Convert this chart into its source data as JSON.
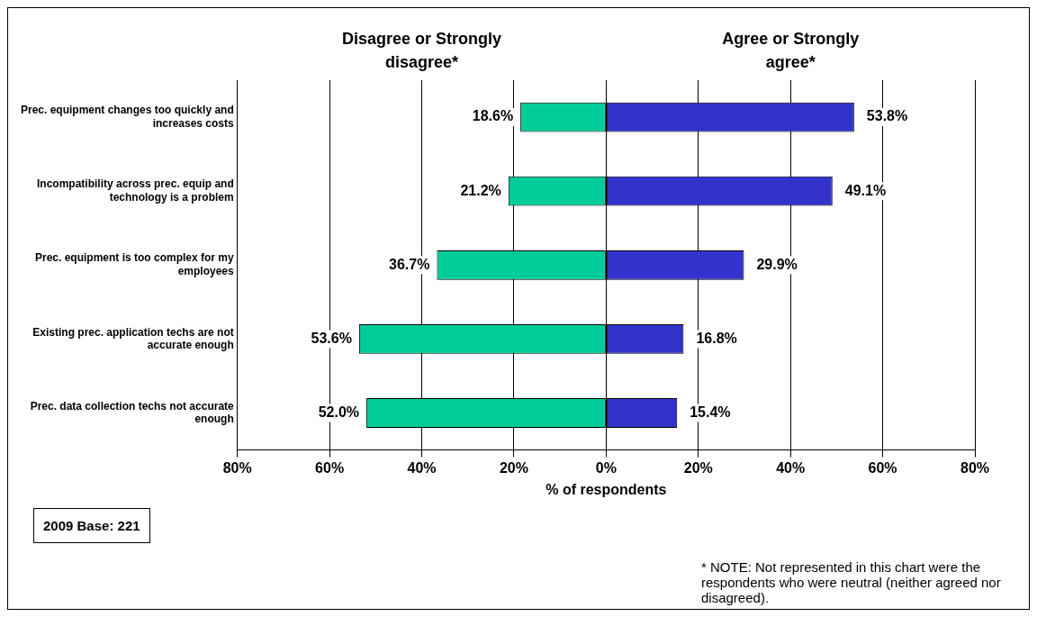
{
  "chart_data": {
    "type": "bar",
    "orientation": "horizontal",
    "categories": [
      "Prec. equipment changes too quickly and increases costs",
      "Incompatibility across prec. equip and technology is a problem",
      "Prec. equipment is too complex for my employees",
      "Existing prec. application techs are not accurate enough",
      "Prec. data collection techs not accurate enough"
    ],
    "series": [
      {
        "name": "Disagree or Strongly disagree*",
        "color": "#00cc99",
        "values": [
          18.6,
          21.2,
          36.7,
          53.6,
          52.0
        ],
        "base": [
          -18.6,
          -21.2,
          -36.7,
          -53.6,
          -52.0
        ],
        "value_labels": [
          "18.6%",
          "21.2%",
          "36.7%",
          "53.6%",
          "52.0%"
        ]
      },
      {
        "name": "Agree or Strongly agree*",
        "color": "#3333cc",
        "values": [
          53.8,
          49.1,
          29.9,
          16.8,
          15.4
        ],
        "value_labels": [
          "53.8%",
          "49.1%",
          "29.9%",
          "16.8%",
          "15.4%"
        ]
      }
    ],
    "xlim": [
      -80,
      80
    ],
    "xticks": [
      {
        "value": -80,
        "label": "80%"
      },
      {
        "value": -60,
        "label": "60%"
      },
      {
        "value": -40,
        "label": "40%"
      },
      {
        "value": -20,
        "label": "20%"
      },
      {
        "value": 0,
        "label": "0%"
      },
      {
        "value": 20,
        "label": "20%"
      },
      {
        "value": 40,
        "label": "40%"
      },
      {
        "value": 60,
        "label": "60%"
      },
      {
        "value": 80,
        "label": "80%"
      }
    ],
    "xlabel": "% of respondents",
    "grid": "x",
    "legend": false,
    "annotations": [
      "2009 Base: 221",
      "* NOTE: Not represented in this chart were the respondents who were neutral (neither agreed nor disagreed)."
    ]
  }
}
